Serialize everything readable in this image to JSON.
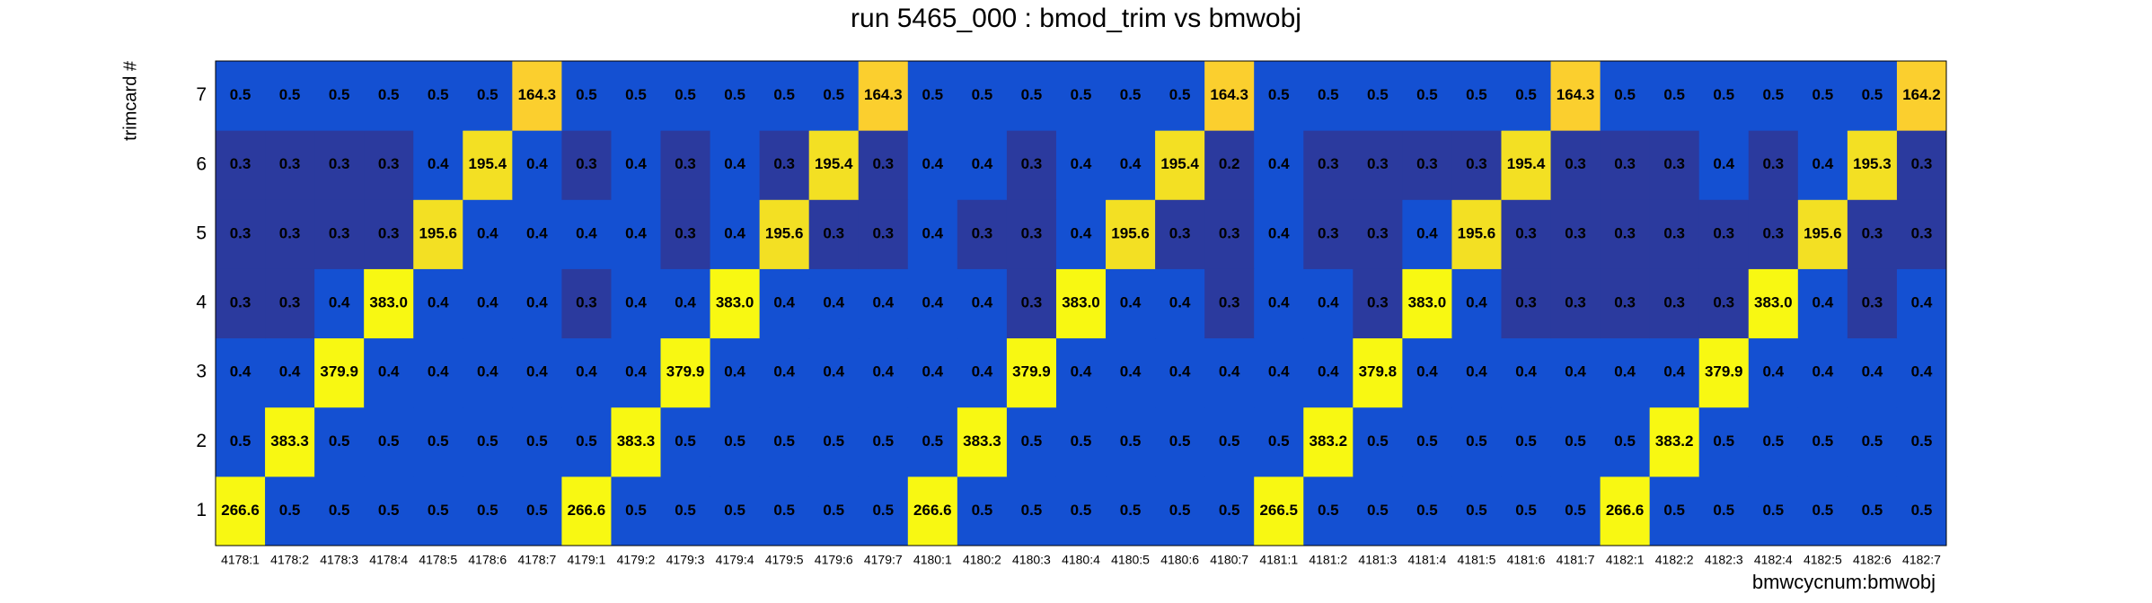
{
  "chart_data": {
    "type": "heatmap",
    "title": "run 5465_000 : bmod_trim vs bmwobj",
    "x_label": "bmwcycnum:bmwobj",
    "y_label": "trimcard #",
    "categories": [
      "4178:1",
      "4178:2",
      "4178:3",
      "4178:4",
      "4178:5",
      "4178:6",
      "4178:7",
      "4179:1",
      "4179:2",
      "4179:3",
      "4179:4",
      "4179:5",
      "4179:6",
      "4179:7",
      "4180:1",
      "4180:2",
      "4180:3",
      "4180:4",
      "4180:5",
      "4180:6",
      "4180:7",
      "4181:1",
      "4181:2",
      "4181:3",
      "4181:4",
      "4181:5",
      "4181:6",
      "4181:7",
      "4182:1",
      "4182:2",
      "4182:3",
      "4182:4",
      "4182:5",
      "4182:6",
      "4182:7"
    ],
    "y_categories": [
      1,
      2,
      3,
      4,
      5,
      6,
      7
    ],
    "palette": [
      "#2b3a9e",
      "#1450d2",
      "#fbcf2e",
      "#f3e023",
      "#f8f812"
    ],
    "values": [
      [
        266.6,
        0.5,
        0.5,
        0.5,
        0.5,
        0.5,
        0.5,
        266.6,
        0.5,
        0.5,
        0.5,
        0.5,
        0.5,
        0.5,
        266.6,
        0.5,
        0.5,
        0.5,
        0.5,
        0.5,
        0.5,
        266.5,
        0.5,
        0.5,
        0.5,
        0.5,
        0.5,
        0.5,
        266.6,
        0.5,
        0.5,
        0.5,
        0.5,
        0.5,
        0.5
      ],
      [
        0.5,
        383.3,
        0.5,
        0.5,
        0.5,
        0.5,
        0.5,
        0.5,
        383.3,
        0.5,
        0.5,
        0.5,
        0.5,
        0.5,
        0.5,
        383.3,
        0.5,
        0.5,
        0.5,
        0.5,
        0.5,
        0.5,
        383.2,
        0.5,
        0.5,
        0.5,
        0.5,
        0.5,
        0.5,
        383.2,
        0.5,
        0.5,
        0.5,
        0.5,
        0.5
      ],
      [
        0.4,
        0.4,
        379.9,
        0.4,
        0.4,
        0.4,
        0.4,
        0.4,
        0.4,
        379.9,
        0.4,
        0.4,
        0.4,
        0.4,
        0.4,
        0.4,
        379.9,
        0.4,
        0.4,
        0.4,
        0.4,
        0.4,
        0.4,
        379.8,
        0.4,
        0.4,
        0.4,
        0.4,
        0.4,
        0.4,
        379.9,
        0.4,
        0.4,
        0.4,
        0.4
      ],
      [
        0.3,
        0.3,
        0.4,
        383.0,
        0.4,
        0.4,
        0.4,
        0.3,
        0.4,
        0.4,
        383.0,
        0.4,
        0.4,
        0.4,
        0.4,
        0.4,
        0.3,
        383.0,
        0.4,
        0.4,
        0.3,
        0.4,
        0.4,
        0.3,
        383.0,
        0.4,
        0.3,
        0.3,
        0.3,
        0.3,
        0.3,
        383.0,
        0.4,
        0.3,
        0.4
      ],
      [
        0.3,
        0.3,
        0.3,
        0.3,
        195.6,
        0.4,
        0.4,
        0.4,
        0.4,
        0.3,
        0.4,
        195.6,
        0.3,
        0.3,
        0.4,
        0.3,
        0.3,
        0.4,
        195.6,
        0.3,
        0.3,
        0.4,
        0.3,
        0.3,
        0.4,
        195.6,
        0.3,
        0.3,
        0.3,
        0.3,
        0.3,
        0.3,
        195.6,
        0.3,
        0.3
      ],
      [
        0.3,
        0.3,
        0.3,
        0.3,
        0.4,
        195.4,
        0.4,
        0.3,
        0.4,
        0.3,
        0.4,
        0.3,
        195.4,
        0.3,
        0.4,
        0.4,
        0.3,
        0.4,
        0.4,
        195.4,
        0.2,
        0.4,
        0.3,
        0.3,
        0.3,
        0.3,
        195.4,
        0.3,
        0.3,
        0.3,
        0.4,
        0.3,
        0.4,
        195.3,
        0.3
      ],
      [
        0.5,
        0.5,
        0.5,
        0.5,
        0.5,
        0.5,
        164.3,
        0.5,
        0.5,
        0.5,
        0.5,
        0.5,
        0.5,
        164.3,
        0.5,
        0.5,
        0.5,
        0.5,
        0.5,
        0.5,
        164.3,
        0.5,
        0.5,
        0.5,
        0.5,
        0.5,
        0.5,
        164.3,
        0.5,
        0.5,
        0.5,
        0.5,
        0.5,
        0.5,
        164.2
      ]
    ],
    "value_labels": [
      [
        "266.6",
        "0.5",
        "0.5",
        "0.5",
        "0.5",
        "0.5",
        "0.5",
        "266.6",
        "0.5",
        "0.5",
        "0.5",
        "0.5",
        "0.5",
        "0.5",
        "266.6",
        "0.5",
        "0.5",
        "0.5",
        "0.5",
        "0.5",
        "0.5",
        "266.5",
        "0.5",
        "0.5",
        "0.5",
        "0.5",
        "0.5",
        "0.5",
        "266.6",
        "0.5",
        "0.5",
        "0.5",
        "0.5",
        "0.5",
        "0.5"
      ],
      [
        "0.5",
        "383.3",
        "0.5",
        "0.5",
        "0.5",
        "0.5",
        "0.5",
        "0.5",
        "383.3",
        "0.5",
        "0.5",
        "0.5",
        "0.5",
        "0.5",
        "0.5",
        "383.3",
        "0.5",
        "0.5",
        "0.5",
        "0.5",
        "0.5",
        "0.5",
        "383.2",
        "0.5",
        "0.5",
        "0.5",
        "0.5",
        "0.5",
        "0.5",
        "383.2",
        "0.5",
        "0.5",
        "0.5",
        "0.5",
        "0.5"
      ],
      [
        "0.4",
        "0.4",
        "379.9",
        "0.4",
        "0.4",
        "0.4",
        "0.4",
        "0.4",
        "0.4",
        "379.9",
        "0.4",
        "0.4",
        "0.4",
        "0.4",
        "0.4",
        "0.4",
        "379.9",
        "0.4",
        "0.4",
        "0.4",
        "0.4",
        "0.4",
        "0.4",
        "379.8",
        "0.4",
        "0.4",
        "0.4",
        "0.4",
        "0.4",
        "0.4",
        "379.9",
        "0.4",
        "0.4",
        "0.4",
        "0.4"
      ],
      [
        "0.3",
        "0.3",
        "0.4",
        "383.0",
        "0.4",
        "0.4",
        "0.4",
        "0.3",
        "0.4",
        "0.4",
        "383.0",
        "0.4",
        "0.4",
        "0.4",
        "0.4",
        "0.4",
        "0.3",
        "383.0",
        "0.4",
        "0.4",
        "0.3",
        "0.4",
        "0.4",
        "0.3",
        "383.0",
        "0.4",
        "0.3",
        "0.3",
        "0.3",
        "0.3",
        "0.3",
        "383.0",
        "0.4",
        "0.3",
        "0.4"
      ],
      [
        "0.3",
        "0.3",
        "0.3",
        "0.3",
        "195.6",
        "0.4",
        "0.4",
        "0.4",
        "0.4",
        "0.3",
        "0.4",
        "195.6",
        "0.3",
        "0.3",
        "0.4",
        "0.3",
        "0.3",
        "0.4",
        "195.6",
        "0.3",
        "0.3",
        "0.4",
        "0.3",
        "0.3",
        "0.4",
        "195.6",
        "0.3",
        "0.3",
        "0.3",
        "0.3",
        "0.3",
        "0.3",
        "195.6",
        "0.3",
        "0.3"
      ],
      [
        "0.3",
        "0.3",
        "0.3",
        "0.3",
        "0.4",
        "195.4",
        "0.4",
        "0.3",
        "0.4",
        "0.3",
        "0.4",
        "0.3",
        "195.4",
        "0.3",
        "0.4",
        "0.4",
        "0.3",
        "0.4",
        "0.4",
        "195.4",
        "0.2",
        "0.4",
        "0.3",
        "0.3",
        "0.3",
        "0.3",
        "195.4",
        "0.3",
        "0.3",
        "0.3",
        "0.4",
        "0.3",
        "0.4",
        "195.3",
        "0.3"
      ],
      [
        "0.5",
        "0.5",
        "0.5",
        "0.5",
        "0.5",
        "0.5",
        "164.3",
        "0.5",
        "0.5",
        "0.5",
        "0.5",
        "0.5",
        "0.5",
        "164.3",
        "0.5",
        "0.5",
        "0.5",
        "0.5",
        "0.5",
        "0.5",
        "164.3",
        "0.5",
        "0.5",
        "0.5",
        "0.5",
        "0.5",
        "0.5",
        "164.3",
        "0.5",
        "0.5",
        "0.5",
        "0.5",
        "0.5",
        "0.5",
        "164.2"
      ]
    ]
  }
}
